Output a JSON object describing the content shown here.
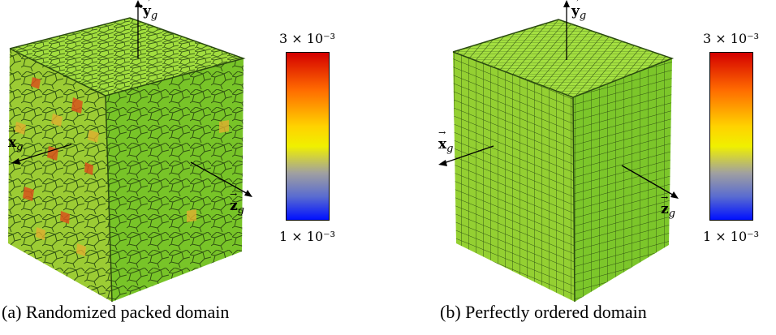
{
  "panels": [
    {
      "caption": "(a) Randomized packed domain",
      "axes": {
        "y": "y",
        "x": "x",
        "z": "z",
        "subscript": "g"
      },
      "colorbar": {
        "max_label": "3 × 10⁻³",
        "min_label": "1 × 10⁻³"
      },
      "cells": "randomized-voronoi"
    },
    {
      "caption": "(b) Perfectly ordered domain",
      "axes": {
        "y": "y",
        "x": "x",
        "z": "z",
        "subscript": "g"
      },
      "colorbar": {
        "max_label": "3 × 10⁻³",
        "min_label": "1 × 10⁻³"
      },
      "cells": "regular-grid"
    }
  ],
  "colors": {
    "cube_base": "#7fd12a",
    "cube_top": "#a2e03c",
    "cube_right": "#6cba22",
    "cell_line": "#2a4a10",
    "hot_cell": "#d8541c",
    "warm_cell": "#e0b030"
  }
}
